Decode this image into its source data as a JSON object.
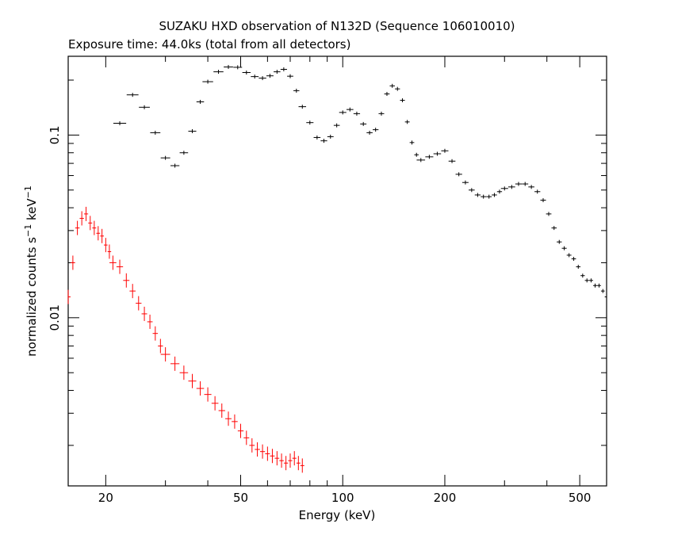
{
  "chart_data": {
    "type": "scatter",
    "title": "SUZAKU HXD observation of N132D (Sequence 106010010)",
    "subtitle": "Exposure time: 44.0ks (total from all detectors)",
    "xlabel": "Energy (keV)",
    "ylabel": "normalized counts s",
    "ylabel_sup1": "−1",
    "ylabel_mid": " keV",
    "ylabel_sup2": "−1",
    "x_scale": "log",
    "y_scale": "log",
    "xlim": [
      15.5,
      600
    ],
    "ylim": [
      0.0012,
      0.27
    ],
    "x_ticks": [
      {
        "value": 20,
        "label": "20"
      },
      {
        "value": 50,
        "label": "50"
      },
      {
        "value": 100,
        "label": "100"
      },
      {
        "value": 200,
        "label": "200"
      },
      {
        "value": 500,
        "label": "500"
      }
    ],
    "y_ticks": [
      {
        "value": 0.01,
        "label": "0.01"
      },
      {
        "value": 0.1,
        "label": "0.1"
      }
    ],
    "grid": false,
    "legend": "none",
    "series": [
      {
        "color": "#000000",
        "x": [
          22.0,
          24.0,
          26.0,
          28.0,
          30.0,
          32.0,
          34.0,
          36.0,
          38.0,
          40.0,
          43.0,
          46.0,
          49.0,
          52.0,
          55.0,
          58.0,
          61.0,
          64.0,
          67.0,
          70.0,
          73.0,
          76.0,
          80.0,
          84.0,
          88.0,
          92.0,
          96.0,
          100.0,
          105.0,
          110.0,
          115.0,
          120.0,
          125.0,
          130.0,
          135.0,
          140.0,
          145.0,
          150.0,
          155.0,
          160.0,
          165.0,
          170.0,
          180.0,
          190.0,
          200.0,
          210.0,
          220.0,
          230.0,
          240.0,
          250.0,
          260.0,
          270.0,
          280.0,
          290.0,
          300.0,
          315.0,
          330.0,
          345.0,
          360.0,
          375.0,
          390.0,
          405.0,
          420.0,
          435.0,
          450.0,
          465.0,
          480.0,
          495.0,
          510.0,
          525.0,
          540.0,
          555.0,
          570.0,
          585.0,
          600.0
        ],
        "y": [
          0.116,
          0.166,
          0.142,
          0.103,
          0.075,
          0.068,
          0.08,
          0.105,
          0.152,
          0.196,
          0.222,
          0.236,
          0.235,
          0.22,
          0.209,
          0.205,
          0.211,
          0.222,
          0.229,
          0.21,
          0.175,
          0.143,
          0.117,
          0.097,
          0.093,
          0.098,
          0.113,
          0.133,
          0.138,
          0.131,
          0.115,
          0.103,
          0.107,
          0.131,
          0.168,
          0.186,
          0.179,
          0.155,
          0.118,
          0.091,
          0.078,
          0.073,
          0.076,
          0.079,
          0.082,
          0.072,
          0.061,
          0.055,
          0.05,
          0.047,
          0.046,
          0.046,
          0.047,
          0.049,
          0.051,
          0.052,
          0.054,
          0.054,
          0.052,
          0.049,
          0.044,
          0.037,
          0.031,
          0.026,
          0.024,
          0.022,
          0.021,
          0.019,
          0.017,
          0.016,
          0.016,
          0.015,
          0.015,
          0.014,
          0.013
        ]
      },
      {
        "color": "#ff0000",
        "x": [
          15.5,
          16.0,
          16.5,
          17.0,
          17.5,
          18.0,
          18.5,
          19.0,
          19.5,
          20.0,
          20.5,
          21.0,
          22.0,
          23.0,
          24.0,
          25.0,
          26.0,
          27.0,
          28.0,
          29.0,
          30.0,
          32.0,
          34.0,
          36.0,
          38.0,
          40.0,
          42.0,
          44.0,
          46.0,
          48.0,
          50.0,
          52.0,
          54.0,
          56.0,
          58.0,
          60.0,
          62.0,
          64.0,
          66.0,
          68.0,
          70.0,
          72.0,
          74.0,
          76.0
        ],
        "y": [
          0.013,
          0.02,
          0.031,
          0.035,
          0.037,
          0.033,
          0.031,
          0.029,
          0.028,
          0.025,
          0.023,
          0.02,
          0.019,
          0.016,
          0.014,
          0.012,
          0.0105,
          0.0095,
          0.0082,
          0.007,
          0.0063,
          0.0056,
          0.005,
          0.0045,
          0.0041,
          0.0038,
          0.0034,
          0.0031,
          0.0028,
          0.0027,
          0.0024,
          0.0022,
          0.002,
          0.0019,
          0.00185,
          0.0018,
          0.00175,
          0.0017,
          0.00165,
          0.0016,
          0.00165,
          0.0017,
          0.0016,
          0.00155
        ]
      }
    ]
  }
}
